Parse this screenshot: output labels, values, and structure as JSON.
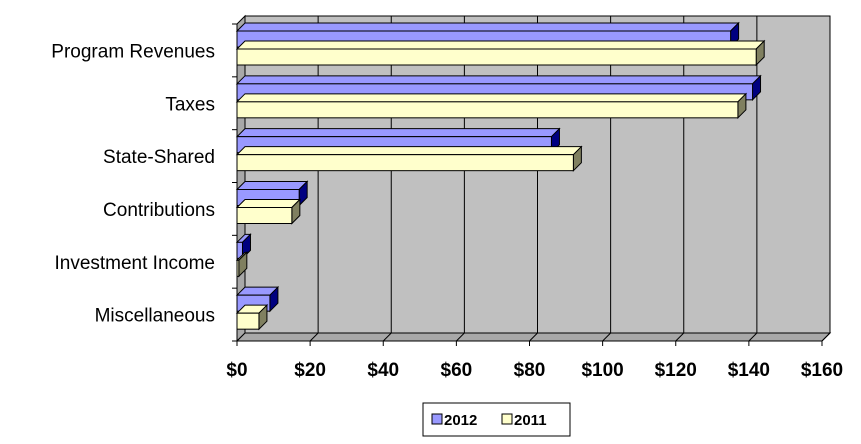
{
  "chart_data": {
    "type": "bar",
    "orientation": "horizontal",
    "style": "3d",
    "categories": [
      "Program Revenues",
      "Taxes",
      "State-Shared",
      "Contributions",
      "Investment Income",
      "Miscellaneous"
    ],
    "series": [
      {
        "name": "2012",
        "values": [
          135,
          141,
          86,
          17,
          1.5,
          9
        ],
        "color": "#9999ff"
      },
      {
        "name": "2011",
        "values": [
          142,
          137,
          92,
          15,
          0.5,
          6
        ],
        "color": "#ffffcc"
      }
    ],
    "x_ticks": [
      "$0",
      "$20",
      "$40",
      "$60",
      "$80",
      "$100",
      "$120",
      "$140",
      "$160"
    ],
    "xlim": [
      0,
      160
    ],
    "title": "",
    "xlabel": "",
    "ylabel": "",
    "grid": "vertical",
    "legend": "bottom-center",
    "colors": {
      "wall": "#c0c0c0",
      "grid": "#000000",
      "outline": "#000000"
    }
  }
}
